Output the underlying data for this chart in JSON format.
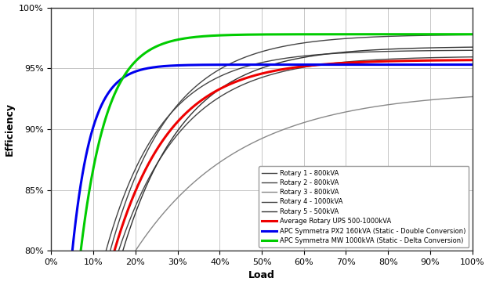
{
  "title": "",
  "xlabel": "Load",
  "ylabel": "Efficiency",
  "ylim": [
    80,
    100
  ],
  "xlim": [
    0,
    100
  ],
  "yticks": [
    80,
    85,
    90,
    95,
    100
  ],
  "xticks": [
    0,
    10,
    20,
    30,
    40,
    50,
    60,
    70,
    80,
    90,
    100
  ],
  "legend": [
    {
      "label": "APC Symmetra MW 1000kVA (Static - Delta Conversion)",
      "color": "#00cc00",
      "lw": 2.2
    },
    {
      "label": "APC Symmetra PX2 160kVA (Static - Double Conversion)",
      "color": "#0000ee",
      "lw": 2.2
    },
    {
      "label": "Average Rotary UPS 500-1000kVA",
      "color": "#ee0000",
      "lw": 2.2
    },
    {
      "label": "Rotary 1 - 800kVA",
      "color": "#444444",
      "lw": 1.0
    },
    {
      "label": "Rotary 2 - 800kVA",
      "color": "#444444",
      "lw": 1.0
    },
    {
      "label": "Rotary 3 - 800kVA",
      "color": "#888888",
      "lw": 1.0
    },
    {
      "label": "Rotary 4 - 1000kVA",
      "color": "#444444",
      "lw": 1.0
    },
    {
      "label": "Rotary 5 - 500kVA",
      "color": "#333333",
      "lw": 1.0
    }
  ],
  "background_color": "#ffffff",
  "grid_color": "#bbbbbb",
  "blue_start_x": 5.0,
  "blue_start_y": 80.0,
  "blue_asymptote": 95.3,
  "blue_k": 0.22,
  "green_start_x": 7.0,
  "green_start_y": 80.0,
  "green_asymptote": 97.8,
  "green_k": 0.16,
  "red_start_x": 15.0,
  "red_start_y": 80.0,
  "red_asymptote": 95.7,
  "red_k": 0.075,
  "rotary_curves": [
    {
      "start_x": 13.0,
      "start_y": 80.0,
      "asymptote": 96.5,
      "k": 0.075
    },
    {
      "start_x": 16.0,
      "start_y": 80.0,
      "asymptote": 96.0,
      "k": 0.065
    },
    {
      "start_x": 20.0,
      "start_y": 80.0,
      "asymptote": 93.2,
      "k": 0.04
    },
    {
      "start_x": 14.0,
      "start_y": 80.0,
      "asymptote": 97.8,
      "k": 0.07
    },
    {
      "start_x": 17.0,
      "start_y": 80.0,
      "asymptote": 96.8,
      "k": 0.068
    }
  ]
}
